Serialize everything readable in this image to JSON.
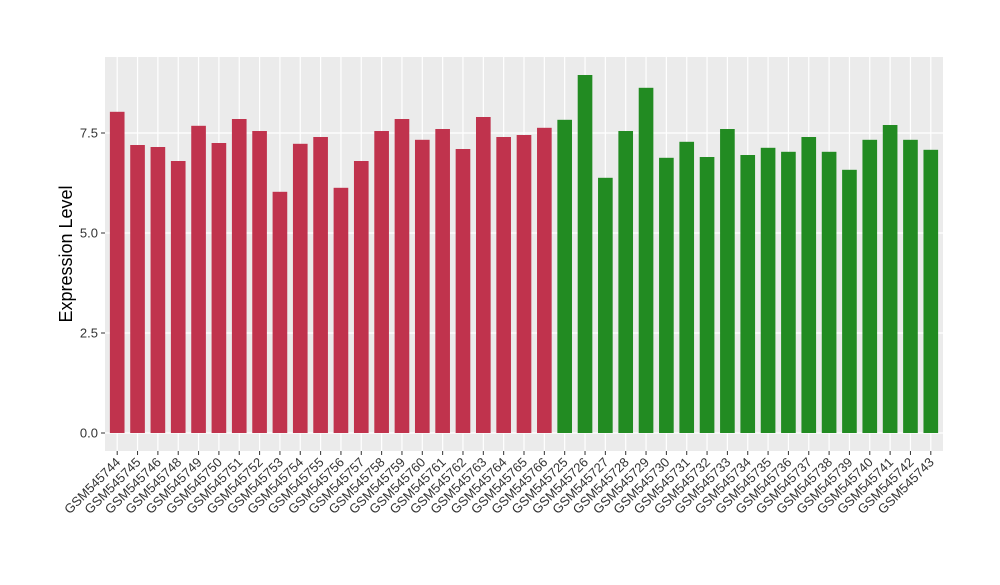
{
  "chart_data": {
    "type": "bar",
    "y_label": "Expression Level",
    "categories": [
      "GSM545744",
      "GSM545745",
      "GSM545746",
      "GSM545748",
      "GSM545749",
      "GSM545750",
      "GSM545751",
      "GSM545752",
      "GSM545753",
      "GSM545754",
      "GSM545755",
      "GSM545756",
      "GSM545757",
      "GSM545758",
      "GSM545759",
      "GSM545760",
      "GSM545761",
      "GSM545762",
      "GSM545763",
      "GSM545764",
      "GSM545765",
      "GSM545766",
      "GSM545725",
      "GSM545726",
      "GSM545727",
      "GSM545728",
      "GSM545729",
      "GSM545730",
      "GSM545731",
      "GSM545732",
      "GSM545733",
      "GSM545734",
      "GSM545735",
      "GSM545736",
      "GSM545737",
      "GSM545738",
      "GSM545739",
      "GSM545740",
      "GSM545741",
      "GSM545742",
      "GSM545743"
    ],
    "values": [
      8.03,
      7.2,
      7.15,
      6.8,
      7.68,
      7.25,
      7.85,
      7.55,
      6.03,
      7.23,
      7.4,
      6.13,
      6.8,
      7.55,
      7.85,
      7.33,
      7.6,
      7.1,
      7.9,
      7.4,
      7.45,
      7.63,
      7.83,
      8.95,
      6.38,
      7.55,
      8.63,
      6.88,
      7.28,
      6.9,
      7.6,
      6.95,
      7.13,
      7.03,
      7.4,
      7.03,
      6.58,
      7.33,
      7.7,
      7.33,
      7.08
    ],
    "colors": [
      "#c0334d",
      "#c0334d",
      "#c0334d",
      "#c0334d",
      "#c0334d",
      "#c0334d",
      "#c0334d",
      "#c0334d",
      "#c0334d",
      "#c0334d",
      "#c0334d",
      "#c0334d",
      "#c0334d",
      "#c0334d",
      "#c0334d",
      "#c0334d",
      "#c0334d",
      "#c0334d",
      "#c0334d",
      "#c0334d",
      "#c0334d",
      "#c0334d",
      "#228b22",
      "#228b22",
      "#228b22",
      "#228b22",
      "#228b22",
      "#228b22",
      "#228b22",
      "#228b22",
      "#228b22",
      "#228b22",
      "#228b22",
      "#228b22",
      "#228b22",
      "#228b22",
      "#228b22",
      "#228b22",
      "#228b22",
      "#228b22",
      "#228b22"
    ],
    "ylim": [
      -0.45,
      9.4
    ],
    "yticks": [
      {
        "value": 0,
        "label": "0.0"
      },
      {
        "value": 2.5,
        "label": "2.5"
      },
      {
        "value": 5,
        "label": "5.0"
      },
      {
        "value": 7.5,
        "label": "7.5"
      }
    ],
    "grid": true
  }
}
